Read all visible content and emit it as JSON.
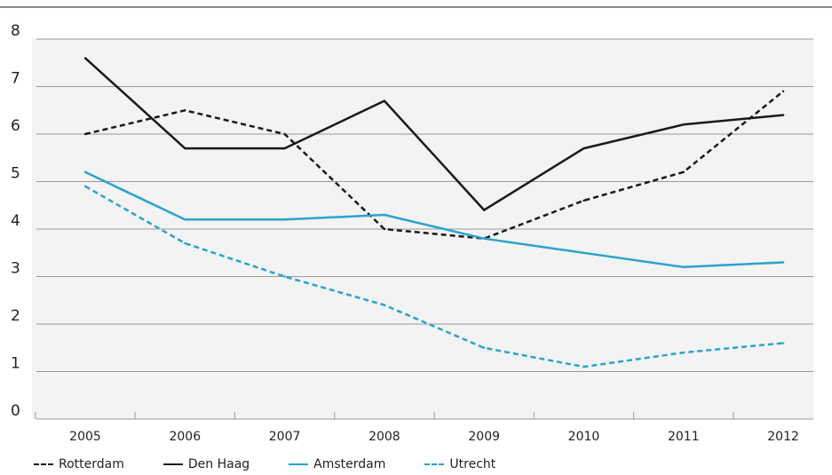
{
  "chart_data": {
    "type": "line",
    "title": "",
    "xlabel": "",
    "ylabel": "",
    "x": [
      "2005",
      "2006",
      "2007",
      "2008",
      "2009",
      "2010",
      "2011",
      "2012"
    ],
    "ylim": [
      0,
      8
    ],
    "yticks": [
      "0",
      "1",
      "2",
      "3",
      "4",
      "5",
      "6",
      "7",
      "8"
    ],
    "grid": true,
    "legend_position": "bottom",
    "series": [
      {
        "name": "Rotterdam",
        "values": [
          6.0,
          6.5,
          6.0,
          4.0,
          3.8,
          4.6,
          5.2,
          6.9
        ],
        "color": "#1a1a1a",
        "style": "dashed"
      },
      {
        "name": "Den Haag",
        "values": [
          7.6,
          5.7,
          5.7,
          6.7,
          4.4,
          5.7,
          6.2,
          6.4
        ],
        "color": "#1a1a1a",
        "style": "solid"
      },
      {
        "name": "Amsterdam",
        "values": [
          5.2,
          4.2,
          4.2,
          4.3,
          3.8,
          3.5,
          3.2,
          3.3
        ],
        "color": "#2aa3cc",
        "style": "solid"
      },
      {
        "name": "Utrecht",
        "values": [
          4.9,
          3.7,
          3.0,
          2.4,
          1.5,
          1.1,
          1.4,
          1.6
        ],
        "color": "#2aa3cc",
        "style": "dashed"
      }
    ]
  }
}
